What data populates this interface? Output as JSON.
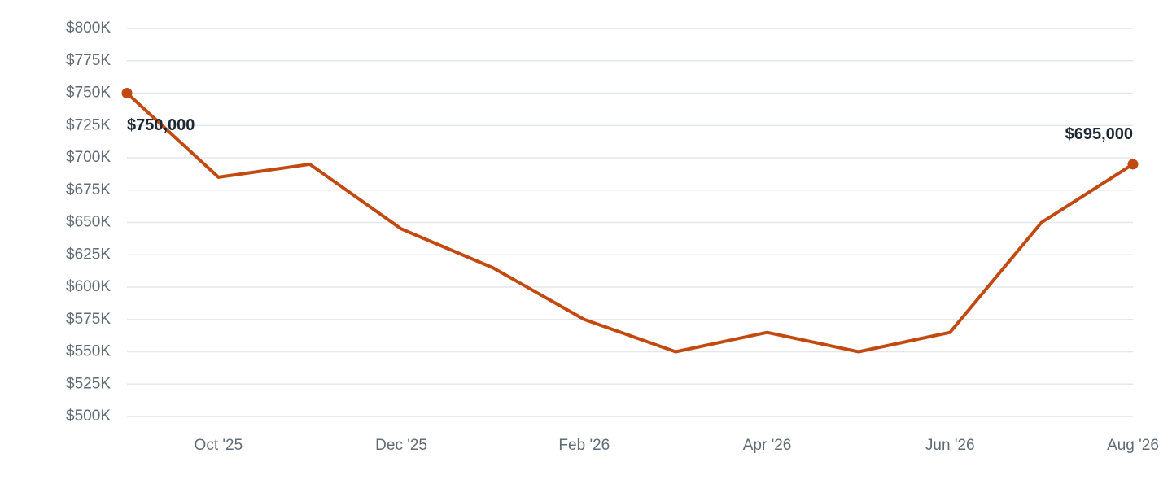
{
  "chart_data": {
    "type": "line",
    "categories": [
      null,
      "Oct '25",
      null,
      "Dec '25",
      null,
      "Feb '26",
      null,
      "Apr '26",
      null,
      "Jun '26",
      null,
      "Aug '26"
    ],
    "series": [
      {
        "color": "#c24a10",
        "values": [
          750000,
          685000,
          695000,
          645000,
          615000,
          575000,
          550000,
          565000,
          550000,
          565000,
          650000,
          695000
        ],
        "value_labels": [
          "$750,000",
          null,
          null,
          null,
          null,
          null,
          null,
          null,
          null,
          null,
          null,
          "$695,000"
        ]
      }
    ],
    "ylim": [
      500000,
      800000
    ],
    "yticks": [
      {
        "value": 500000,
        "label": "$500K"
      },
      {
        "value": 525000,
        "label": "$525K"
      },
      {
        "value": 550000,
        "label": "$550K"
      },
      {
        "value": 575000,
        "label": "$575K"
      },
      {
        "value": 600000,
        "label": "$600K"
      },
      {
        "value": 625000,
        "label": "$625K"
      },
      {
        "value": 650000,
        "label": "$650K"
      },
      {
        "value": 675000,
        "label": "$675K"
      },
      {
        "value": 700000,
        "label": "$700K"
      },
      {
        "value": 725000,
        "label": "$725K"
      },
      {
        "value": 750000,
        "label": "$750K"
      },
      {
        "value": 775000,
        "label": "$775K"
      },
      {
        "value": 800000,
        "label": "$800K"
      }
    ],
    "grid": true
  }
}
